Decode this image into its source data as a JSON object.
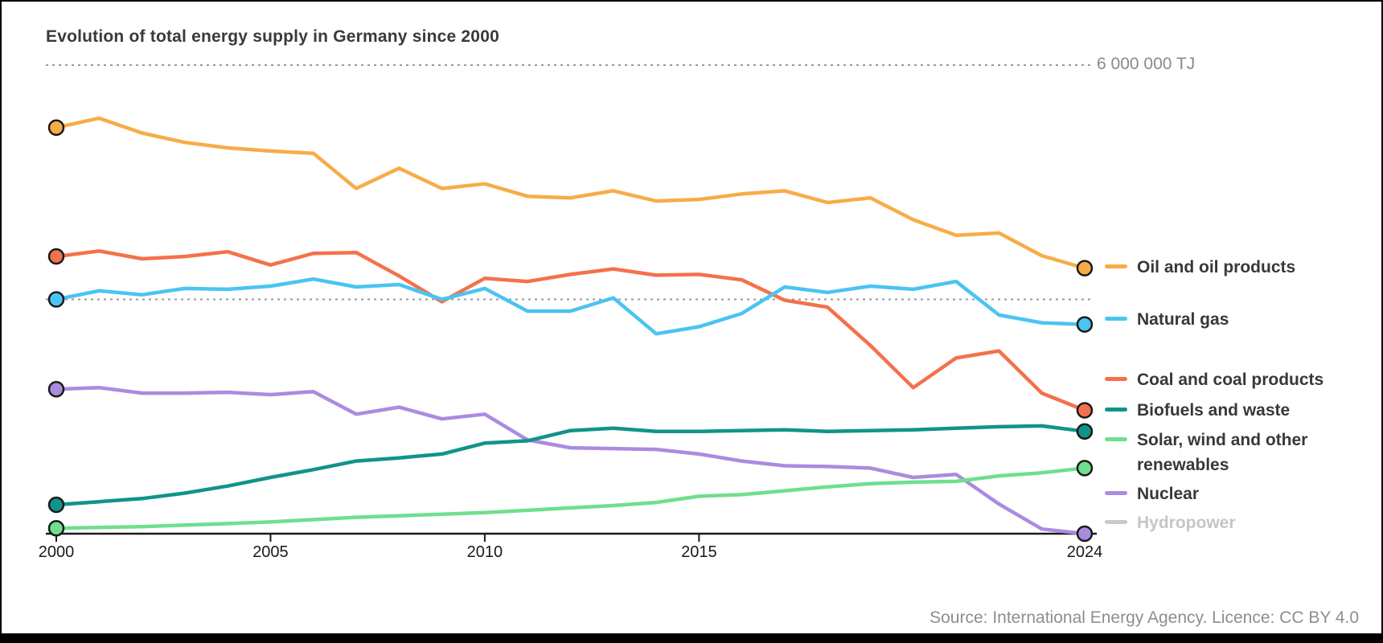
{
  "header": {
    "title": "Evolution of total energy supply in Germany since 2000"
  },
  "footer": {
    "source": "Source: International Energy Agency. Licence: CC BY 4.0"
  },
  "legend": {
    "items": [
      {
        "label": "Oil and oil products",
        "color": "#F8AC47",
        "muted": false
      },
      {
        "label": "Natural gas",
        "color": "#4AC4F2",
        "muted": false
      },
      {
        "label": "Coal and coal products",
        "color": "#F4714C",
        "muted": false
      },
      {
        "label": "Biofuels and waste",
        "color": "#109488",
        "muted": false
      },
      {
        "label": "Solar, wind and other renewables",
        "color": "#6FDF8E",
        "muted": false
      },
      {
        "label": "Nuclear",
        "color": "#AB8BE0",
        "muted": false
      },
      {
        "label": "Hydropower",
        "color": "#C9C9C9",
        "muted": true
      }
    ]
  },
  "chart_data": {
    "type": "line",
    "title": "Evolution of total energy supply in Germany since 2000",
    "unit": "TJ",
    "ylim": [
      0,
      6000000
    ],
    "grid": "dashed-horizontal",
    "legend_position": "right",
    "x": [
      2000,
      2001,
      2002,
      2003,
      2004,
      2005,
      2006,
      2007,
      2008,
      2009,
      2010,
      2011,
      2012,
      2013,
      2014,
      2015,
      2016,
      2017,
      2018,
      2019,
      2020,
      2021,
      2022,
      2023,
      2024
    ],
    "x_ticks": [
      2000,
      2005,
      2010,
      2015,
      2024
    ],
    "gridlines": [
      {
        "value": 6000000,
        "label": "6 000 000 TJ"
      },
      {
        "value": 3000000,
        "label": ""
      }
    ],
    "series": [
      {
        "name": "Oil and oil products",
        "color": "#F8AC47",
        "hidden": false,
        "values": [
          5200000,
          5320000,
          5130000,
          5010000,
          4940000,
          4900000,
          4870000,
          4420000,
          4680000,
          4420000,
          4480000,
          4320000,
          4300000,
          4390000,
          4260000,
          4280000,
          4350000,
          4390000,
          4240000,
          4300000,
          4020000,
          3820000,
          3850000,
          3560000,
          3400000
        ]
      },
      {
        "name": "Natural gas",
        "color": "#4AC4F2",
        "hidden": false,
        "values": [
          3000000,
          3110000,
          3060000,
          3140000,
          3130000,
          3170000,
          3260000,
          3160000,
          3190000,
          3000000,
          3140000,
          2850000,
          2850000,
          3020000,
          2560000,
          2650000,
          2820000,
          3160000,
          3090000,
          3170000,
          3130000,
          3230000,
          2800000,
          2700000,
          2680000
        ]
      },
      {
        "name": "Coal and coal products",
        "color": "#F4714C",
        "hidden": false,
        "values": [
          3550000,
          3620000,
          3520000,
          3550000,
          3610000,
          3440000,
          3590000,
          3600000,
          3300000,
          2970000,
          3270000,
          3230000,
          3320000,
          3390000,
          3310000,
          3320000,
          3250000,
          2990000,
          2900000,
          2410000,
          1870000,
          2250000,
          2340000,
          1800000,
          1580000
        ]
      },
      {
        "name": "Biofuels and waste",
        "color": "#109488",
        "hidden": false,
        "values": [
          370000,
          410000,
          450000,
          520000,
          610000,
          720000,
          820000,
          930000,
          970000,
          1020000,
          1160000,
          1190000,
          1320000,
          1350000,
          1310000,
          1310000,
          1320000,
          1330000,
          1310000,
          1320000,
          1330000,
          1350000,
          1370000,
          1380000,
          1310000
        ]
      },
      {
        "name": "Solar, wind and other renewables",
        "color": "#6FDF8E",
        "hidden": false,
        "values": [
          70000,
          80000,
          90000,
          110000,
          130000,
          150000,
          180000,
          210000,
          230000,
          250000,
          270000,
          300000,
          330000,
          360000,
          400000,
          480000,
          500000,
          550000,
          600000,
          640000,
          660000,
          670000,
          740000,
          780000,
          840000
        ]
      },
      {
        "name": "Nuclear",
        "color": "#AB8BE0",
        "hidden": false,
        "values": [
          1850000,
          1870000,
          1800000,
          1800000,
          1810000,
          1780000,
          1820000,
          1530000,
          1620000,
          1470000,
          1530000,
          1200000,
          1100000,
          1090000,
          1080000,
          1020000,
          930000,
          870000,
          860000,
          840000,
          720000,
          760000,
          380000,
          60000,
          0
        ]
      },
      {
        "name": "Hydropower",
        "color": "#C9C9C9",
        "hidden": true,
        "values": []
      }
    ]
  }
}
